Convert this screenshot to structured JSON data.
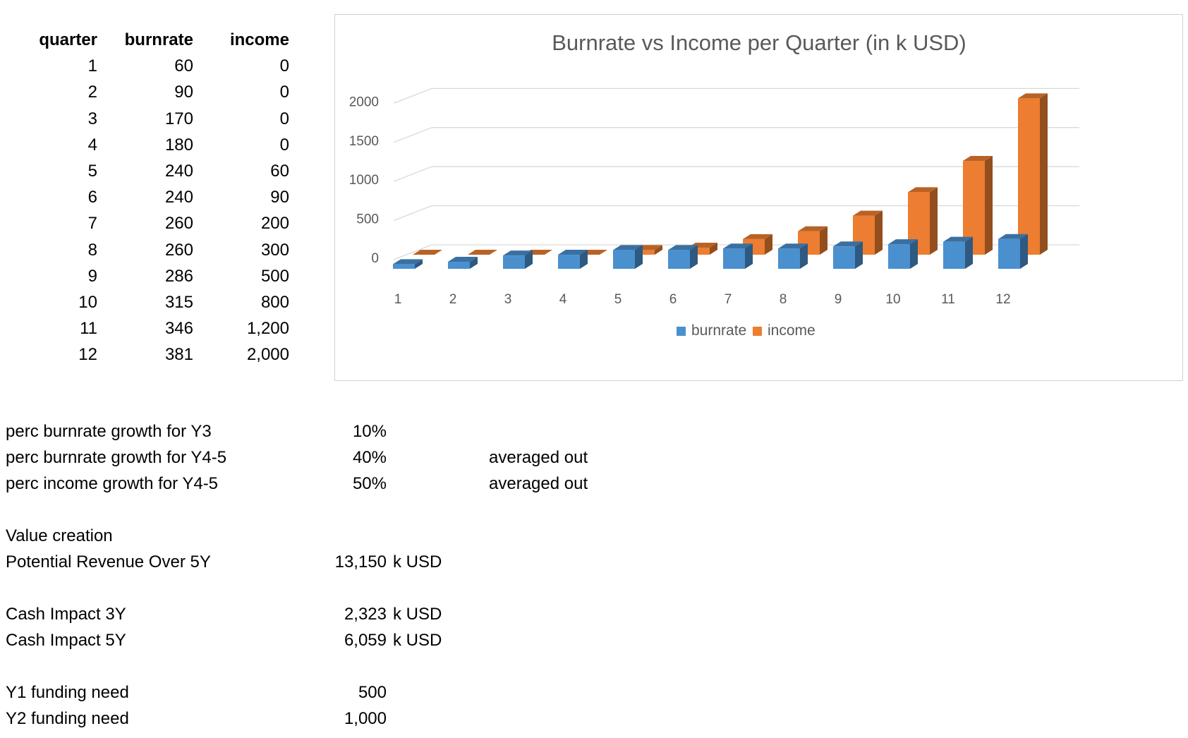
{
  "table": {
    "headers": [
      "quarter",
      "burnrate",
      "income"
    ],
    "rows": [
      [
        "1",
        "60",
        "0"
      ],
      [
        "2",
        "90",
        "0"
      ],
      [
        "3",
        "170",
        "0"
      ],
      [
        "4",
        "180",
        "0"
      ],
      [
        "5",
        "240",
        "60"
      ],
      [
        "6",
        "240",
        "90"
      ],
      [
        "7",
        "260",
        "200"
      ],
      [
        "8",
        "260",
        "300"
      ],
      [
        "9",
        "286",
        "500"
      ],
      [
        "10",
        "315",
        "800"
      ],
      [
        "11",
        "346",
        "1,200"
      ],
      [
        "12",
        "381",
        "2,000"
      ]
    ]
  },
  "params": [
    {
      "label": "perc burnrate growth for Y3",
      "value": "10%",
      "unit": "",
      "note": ""
    },
    {
      "label": "perc burnrate growth for Y4-5",
      "value": "40%",
      "unit": "",
      "note": "averaged out"
    },
    {
      "label": "perc income growth for Y4-5",
      "value": "50%",
      "unit": "",
      "note": "averaged out"
    },
    {
      "label": "Value creation",
      "value": "",
      "unit": "",
      "note": ""
    },
    {
      "label": "Potential Revenue Over 5Y",
      "value": "13,150",
      "unit": "k USD",
      "note": ""
    },
    {
      "label": "Cash Impact 3Y",
      "value": "2,323",
      "unit": "k USD",
      "note": ""
    },
    {
      "label": "Cash Impact 5Y",
      "value": "6,059",
      "unit": "k USD",
      "note": ""
    },
    {
      "label": "Y1 funding need",
      "value": "500",
      "unit": "",
      "note": ""
    },
    {
      "label": "Y2 funding need",
      "value": "1,000",
      "unit": "",
      "note": ""
    }
  ],
  "colors": {
    "burnrate": "#4a90cf",
    "income": "#ed7d31",
    "grid": "#d9d9d9",
    "axis_text": "#595959",
    "title_text": "#595959"
  },
  "chart_data": {
    "type": "bar",
    "title": "Burnrate vs Income per Quarter (in k USD)",
    "categories": [
      "1",
      "2",
      "3",
      "4",
      "5",
      "6",
      "7",
      "8",
      "9",
      "10",
      "11",
      "12"
    ],
    "series": [
      {
        "name": "burnrate",
        "values": [
          60,
          90,
          170,
          180,
          240,
          240,
          260,
          260,
          286,
          315,
          346,
          381
        ]
      },
      {
        "name": "income",
        "values": [
          0,
          0,
          0,
          0,
          60,
          90,
          200,
          300,
          500,
          800,
          1200,
          2000
        ]
      }
    ],
    "yticks": [
      "0",
      "500",
      "1000",
      "1500",
      "2000"
    ],
    "ylim": [
      0,
      2000
    ],
    "legend": "bottom",
    "grid": true,
    "style": "3d-column"
  }
}
